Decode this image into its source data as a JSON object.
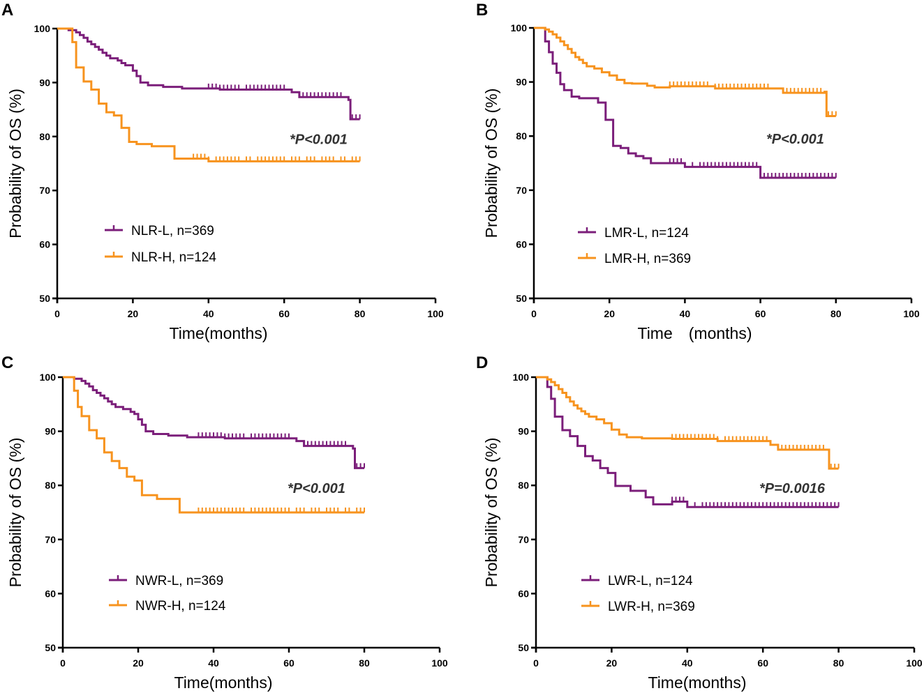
{
  "colors": {
    "purple": "#7B1E7A",
    "orange": "#F7931E",
    "axis": "#000000"
  },
  "chart_data": [
    {
      "type": "line",
      "panel": "A",
      "xlabel": "Time(months)",
      "ylabel": "Probability of OS (%)",
      "xlim": [
        0,
        100
      ],
      "ylim": [
        50,
        100
      ],
      "xticks": [
        0,
        20,
        40,
        60,
        80,
        100
      ],
      "yticks": [
        50,
        60,
        70,
        80,
        90,
        100
      ],
      "pvalue": "*P<0.001",
      "legend_position": "lower-left",
      "series": [
        {
          "name": "NLR-L, n=369",
          "color": "purple",
          "x": [
            0,
            3,
            5,
            6,
            7,
            8,
            9,
            10,
            11,
            12,
            13,
            14,
            16,
            17,
            18,
            20,
            21,
            22,
            24,
            28,
            33,
            43,
            62,
            64,
            77,
            77.5
          ],
          "y": [
            100,
            99.7,
            99.3,
            98.8,
            98.3,
            97.6,
            97.1,
            96.6,
            96.1,
            95.5,
            95,
            94.5,
            94.1,
            93.6,
            93.2,
            92.2,
            91.2,
            90,
            89.5,
            89.2,
            88.9,
            88.7,
            88.2,
            87.3,
            86.8,
            83.2
          ],
          "end": 80,
          "censor_x": [
            40,
            41,
            42,
            43,
            44,
            45,
            46,
            47,
            48,
            50,
            51,
            52,
            53,
            54,
            55,
            56,
            57,
            58,
            59,
            60,
            64,
            65,
            66,
            67,
            68,
            69,
            70,
            71,
            72,
            73,
            74,
            75,
            78,
            79,
            80
          ]
        },
        {
          "name": "NLR-H, n=124",
          "color": "orange",
          "x": [
            0,
            4,
            5,
            7,
            9,
            11,
            13,
            15,
            17,
            19,
            21,
            25,
            31,
            40
          ],
          "y": [
            100,
            97.5,
            92.8,
            90.2,
            88.7,
            86.1,
            84.5,
            83.9,
            81.6,
            79,
            78.6,
            78.2,
            75.9,
            75.4
          ],
          "end": 80,
          "censor_x": [
            36,
            37,
            38,
            39,
            40,
            42,
            43,
            44,
            45,
            46,
            47,
            48,
            50,
            51,
            53,
            54,
            55,
            56,
            57,
            58,
            59,
            60,
            62,
            63,
            64,
            66,
            67,
            68,
            70,
            71,
            72,
            73,
            75,
            76,
            78,
            79,
            80
          ]
        }
      ]
    },
    {
      "type": "line",
      "panel": "B",
      "xlabel": "Time　(months)",
      "ylabel": "Probability of OS (%)",
      "xlim": [
        0,
        100
      ],
      "ylim": [
        50,
        100
      ],
      "xticks": [
        0,
        20,
        40,
        60,
        80,
        100
      ],
      "yticks": [
        50,
        60,
        70,
        80,
        90,
        100
      ],
      "pvalue": "*P<0.001",
      "legend_position": "lower-left",
      "series": [
        {
          "name": "LMR-L, n=124",
          "color": "purple",
          "x": [
            0,
            3,
            4,
            5,
            6,
            7,
            8,
            10,
            12,
            17,
            19,
            21,
            23,
            25,
            27,
            29,
            31,
            40,
            60
          ],
          "y": [
            100,
            97.5,
            95.5,
            93.4,
            91.7,
            89.6,
            88.5,
            87.3,
            87,
            86.2,
            83,
            78.2,
            77.8,
            76.8,
            76.3,
            75.9,
            75,
            74.3,
            72.3
          ],
          "end": 80,
          "censor_x": [
            36,
            37,
            38,
            39,
            42,
            44,
            45,
            46,
            47,
            48,
            49,
            50,
            51,
            52,
            53,
            54,
            55,
            56,
            57,
            58,
            59,
            61,
            62,
            63,
            64,
            65,
            66,
            67,
            68,
            69,
            70,
            71,
            72,
            73,
            74,
            75,
            76,
            77,
            78,
            79,
            80
          ]
        },
        {
          "name": "LMR-H, n=369",
          "color": "orange",
          "x": [
            0,
            3,
            4,
            5,
            6,
            7,
            8,
            9,
            10,
            11,
            12,
            13,
            14,
            16,
            18,
            20,
            22,
            24,
            26,
            30,
            32,
            36,
            48,
            66,
            77,
            77.5
          ],
          "y": [
            100,
            99.7,
            99.3,
            98.8,
            98.2,
            97.5,
            96.8,
            96.1,
            95.4,
            94.6,
            94.1,
            93.5,
            92.9,
            92.5,
            91.8,
            91.2,
            90.4,
            89.8,
            89.7,
            89.3,
            89,
            89.2,
            88.8,
            88,
            88.2,
            83.7
          ],
          "end": 80,
          "censor_x": [
            36,
            37,
            38,
            39,
            40,
            41,
            42,
            43,
            44,
            45,
            46,
            48,
            49,
            50,
            51,
            52,
            53,
            54,
            55,
            56,
            57,
            58,
            59,
            60,
            61,
            62,
            67,
            68,
            69,
            70,
            71,
            72,
            73,
            74,
            75,
            76,
            78,
            79,
            80
          ]
        }
      ]
    },
    {
      "type": "line",
      "panel": "C",
      "xlabel": "Time(months)",
      "ylabel": "Probability of OS (%)",
      "xlim": [
        0,
        100
      ],
      "ylim": [
        50,
        100
      ],
      "xticks": [
        0,
        20,
        40,
        60,
        80,
        100
      ],
      "yticks": [
        50,
        60,
        70,
        80,
        90,
        100
      ],
      "pvalue": "*P<0.001",
      "legend_position": "lower-left",
      "series": [
        {
          "name": "NWR-L, n=369",
          "color": "purple",
          "x": [
            0,
            3,
            5,
            6,
            7,
            8,
            9,
            10,
            11,
            12,
            13,
            14,
            16,
            18,
            19,
            20,
            21,
            22,
            24,
            28,
            33,
            43,
            62,
            64,
            77,
            77.5
          ],
          "y": [
            100,
            99.7,
            99.3,
            98.8,
            98.3,
            97.6,
            97.1,
            96.6,
            96.1,
            95.5,
            95,
            94.5,
            94.1,
            93.6,
            93.2,
            92.2,
            91.2,
            90,
            89.5,
            89.2,
            88.9,
            88.7,
            88.2,
            87.3,
            86.8,
            83.2
          ],
          "end": 80,
          "censor_x": [
            36,
            37,
            38,
            39,
            40,
            41,
            42,
            43,
            44,
            45,
            46,
            47,
            48,
            50,
            51,
            52,
            53,
            54,
            55,
            56,
            57,
            58,
            59,
            60,
            64,
            65,
            66,
            67,
            68,
            69,
            70,
            71,
            72,
            73,
            74,
            75,
            78,
            79,
            80
          ]
        },
        {
          "name": "NWR-H, n=124",
          "color": "orange",
          "x": [
            0,
            3,
            4,
            5,
            7,
            9,
            11,
            13,
            15,
            17,
            19,
            21,
            25,
            31
          ],
          "y": [
            100,
            97.5,
            94.5,
            92.8,
            90.2,
            88.7,
            86.1,
            84.5,
            83.2,
            81.6,
            80.9,
            78.2,
            77.5,
            75
          ],
          "end": 80,
          "censor_x": [
            36,
            37,
            38,
            39,
            40,
            41,
            42,
            43,
            44,
            45,
            46,
            47,
            48,
            50,
            51,
            52,
            53,
            54,
            55,
            56,
            57,
            58,
            59,
            60,
            62,
            63,
            64,
            66,
            67,
            68,
            70,
            71,
            72,
            73,
            75,
            76,
            78,
            79,
            80
          ]
        }
      ]
    },
    {
      "type": "line",
      "panel": "D",
      "xlabel": "Time(months)",
      "ylabel": "Probability of OS (%)",
      "xlim": [
        0,
        100
      ],
      "ylim": [
        50,
        100
      ],
      "xticks": [
        0,
        20,
        40,
        60,
        80,
        100
      ],
      "yticks": [
        50,
        60,
        70,
        80,
        90,
        100
      ],
      "pvalue": "*P=0.0016",
      "legend_position": "lower-left",
      "series": [
        {
          "name": "LWR-L, n=124",
          "color": "purple",
          "x": [
            0,
            3,
            4,
            5,
            7,
            9,
            11,
            13,
            15,
            17,
            19,
            21,
            25,
            29,
            31,
            36,
            40
          ],
          "y": [
            100,
            98.2,
            96,
            92.7,
            90.2,
            89.1,
            87.3,
            85.4,
            84.6,
            83.2,
            82.3,
            79.9,
            79,
            77.8,
            76.5,
            77,
            76
          ],
          "end": 80,
          "censor_x": [
            36,
            37,
            38,
            39,
            42,
            44,
            45,
            46,
            47,
            48,
            49,
            50,
            51,
            52,
            53,
            54,
            55,
            56,
            57,
            58,
            59,
            60,
            61,
            62,
            63,
            64,
            65,
            66,
            67,
            68,
            69,
            70,
            71,
            72,
            73,
            74,
            75,
            76,
            77,
            78,
            79,
            80
          ]
        },
        {
          "name": "LWR-H, n=369",
          "color": "orange",
          "x": [
            0,
            3,
            4,
            5,
            6,
            7,
            8,
            9,
            10,
            11,
            12,
            13,
            14,
            16,
            18,
            20,
            22,
            24,
            28,
            36,
            48,
            62,
            64,
            77,
            77.5
          ],
          "y": [
            100,
            99.6,
            99.1,
            98.5,
            97.8,
            97.1,
            96.3,
            95.5,
            94.8,
            94.2,
            93.7,
            93.2,
            92.7,
            92.2,
            91.5,
            90.3,
            89.4,
            88.9,
            88.7,
            88.6,
            88.2,
            87.5,
            86.6,
            86.6,
            83.1
          ],
          "end": 80,
          "censor_x": [
            36,
            37,
            38,
            39,
            40,
            41,
            42,
            43,
            44,
            45,
            46,
            47,
            48,
            50,
            51,
            52,
            53,
            54,
            55,
            56,
            57,
            58,
            59,
            60,
            61,
            65,
            66,
            67,
            68,
            69,
            70,
            71,
            72,
            73,
            74,
            75,
            76,
            78,
            79,
            80
          ]
        }
      ]
    }
  ]
}
